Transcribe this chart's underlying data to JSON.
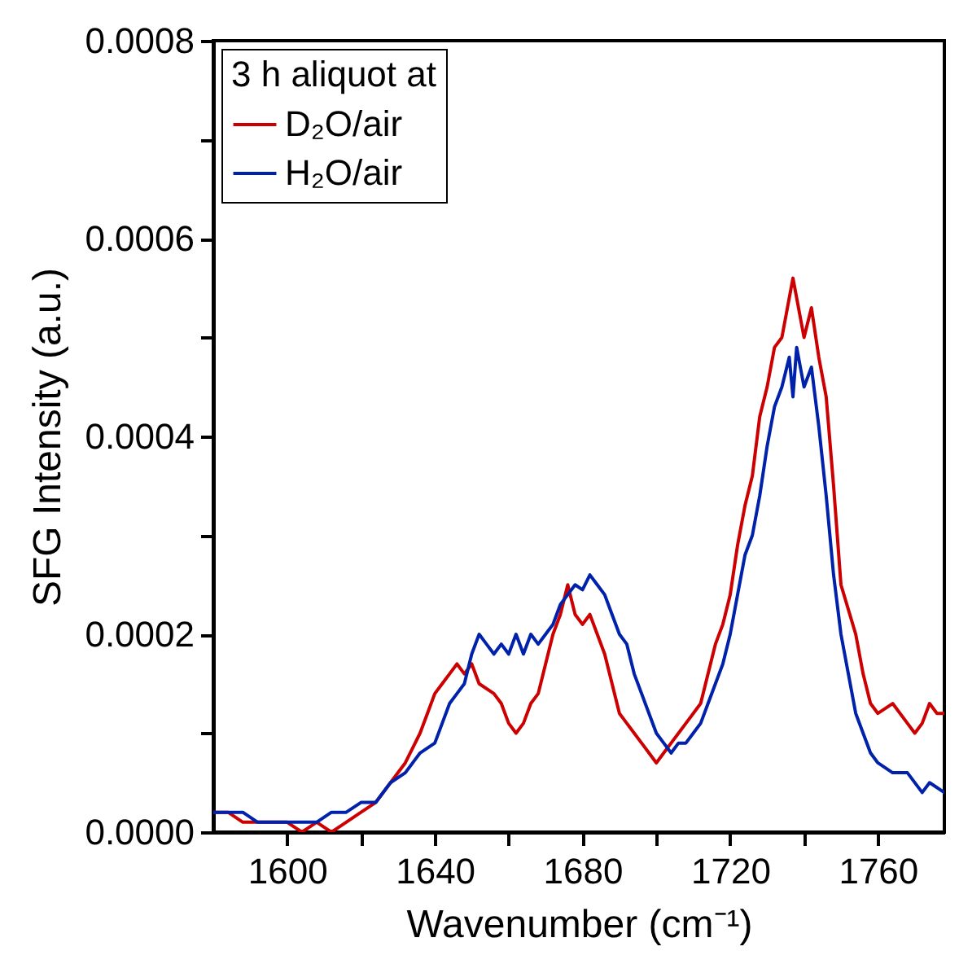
{
  "chart_data": {
    "type": "line",
    "xlabel": "Wavenumber (cm⁻¹)",
    "ylabel": "SFG Intensity (a.u.)",
    "legend_title": "3 h aliquot at",
    "legend": "top left",
    "grid": false,
    "marker": "none",
    "line_style": "solid",
    "xlim": [
      1580,
      1778
    ],
    "ylim": [
      0,
      0.0008
    ],
    "xticks": [
      1600,
      {
        "value": 1620,
        "label": null
      },
      1640,
      {
        "value": 1660,
        "label": null
      },
      1680,
      {
        "value": 1700,
        "label": null
      },
      1720,
      {
        "value": 1740,
        "label": null
      },
      1760
    ],
    "yticks": [
      {
        "value": 0,
        "label": "0.0000"
      },
      {
        "value": 0.0001,
        "label": null
      },
      {
        "value": 0.0002,
        "label": "0.0002"
      },
      {
        "value": 0.0003,
        "label": null
      },
      {
        "value": 0.0004,
        "label": "0.0004"
      },
      {
        "value": 0.0005,
        "label": null
      },
      {
        "value": 0.0006,
        "label": "0.0006"
      },
      {
        "value": 0.0007,
        "label": null
      },
      {
        "value": 0.0008,
        "label": "0.0008"
      }
    ],
    "series": [
      {
        "name": "D₂O/air",
        "color": "#cc0000",
        "x": [
          1580,
          1584,
          1588,
          1592,
          1596,
          1600,
          1604,
          1608,
          1612,
          1616,
          1620,
          1624,
          1628,
          1632,
          1636,
          1638,
          1640,
          1642,
          1644,
          1646,
          1648,
          1650,
          1652,
          1656,
          1658,
          1660,
          1662,
          1664,
          1666,
          1668,
          1670,
          1672,
          1674,
          1676,
          1678,
          1680,
          1682,
          1684,
          1686,
          1690,
          1692,
          1694,
          1696,
          1698,
          1700,
          1702,
          1704,
          1706,
          1708,
          1710,
          1712,
          1714,
          1716,
          1718,
          1720,
          1722,
          1724,
          1726,
          1728,
          1730,
          1732,
          1734,
          1736,
          1737,
          1738,
          1740,
          1742,
          1744,
          1746,
          1748,
          1750,
          1754,
          1756,
          1758,
          1760,
          1764,
          1768,
          1770,
          1772,
          1774,
          1776,
          1778
        ],
        "values": [
          2e-05,
          2e-05,
          1e-05,
          1e-05,
          1e-05,
          1e-05,
          0,
          1e-05,
          0,
          1e-05,
          2e-05,
          3e-05,
          5e-05,
          7e-05,
          0.0001,
          0.00012,
          0.00014,
          0.00015,
          0.00016,
          0.00017,
          0.00016,
          0.00017,
          0.00015,
          0.00014,
          0.00013,
          0.00011,
          0.0001,
          0.00011,
          0.00013,
          0.00014,
          0.00017,
          0.0002,
          0.00022,
          0.00025,
          0.00022,
          0.00021,
          0.00022,
          0.0002,
          0.00018,
          0.00012,
          0.00011,
          0.0001,
          9e-05,
          8e-05,
          7e-05,
          8e-05,
          9e-05,
          0.0001,
          0.00011,
          0.00012,
          0.00013,
          0.00016,
          0.00019,
          0.00021,
          0.00024,
          0.00029,
          0.00033,
          0.00036,
          0.00042,
          0.00045,
          0.00049,
          0.0005,
          0.00054,
          0.00056,
          0.00054,
          0.0005,
          0.00053,
          0.00048,
          0.00044,
          0.00035,
          0.00025,
          0.0002,
          0.00016,
          0.00013,
          0.00012,
          0.00013,
          0.00011,
          0.0001,
          0.00011,
          0.00013,
          0.00012,
          0.00012
        ]
      },
      {
        "name": "H₂O/air",
        "color": "#0022aa",
        "x": [
          1580,
          1584,
          1588,
          1592,
          1596,
          1600,
          1604,
          1608,
          1612,
          1616,
          1620,
          1624,
          1628,
          1632,
          1636,
          1640,
          1642,
          1644,
          1646,
          1648,
          1650,
          1652,
          1654,
          1656,
          1658,
          1660,
          1662,
          1664,
          1666,
          1668,
          1670,
          1672,
          1674,
          1676,
          1678,
          1680,
          1682,
          1684,
          1686,
          1688,
          1690,
          1692,
          1694,
          1696,
          1698,
          1700,
          1702,
          1704,
          1706,
          1708,
          1710,
          1712,
          1714,
          1716,
          1718,
          1720,
          1722,
          1724,
          1726,
          1728,
          1730,
          1732,
          1734,
          1736,
          1737,
          1738,
          1740,
          1742,
          1744,
          1746,
          1748,
          1750,
          1752,
          1754,
          1756,
          1758,
          1760,
          1764,
          1768,
          1772,
          1774,
          1778
        ],
        "values": [
          2e-05,
          2e-05,
          2e-05,
          1e-05,
          1e-05,
          1e-05,
          1e-05,
          1e-05,
          2e-05,
          2e-05,
          3e-05,
          3e-05,
          5e-05,
          6e-05,
          8e-05,
          9e-05,
          0.00011,
          0.00013,
          0.00014,
          0.00015,
          0.00018,
          0.0002,
          0.00019,
          0.00018,
          0.00019,
          0.00018,
          0.0002,
          0.00018,
          0.0002,
          0.00019,
          0.0002,
          0.00021,
          0.00023,
          0.00024,
          0.00025,
          0.000245,
          0.00026,
          0.00025,
          0.00024,
          0.00022,
          0.0002,
          0.00019,
          0.00016,
          0.00014,
          0.00012,
          0.0001,
          9e-05,
          8e-05,
          9e-05,
          9e-05,
          0.0001,
          0.00011,
          0.00013,
          0.00015,
          0.00017,
          0.0002,
          0.00024,
          0.00028,
          0.0003,
          0.00034,
          0.00039,
          0.00043,
          0.00045,
          0.00048,
          0.00044,
          0.00049,
          0.00045,
          0.00047,
          0.00041,
          0.00034,
          0.00026,
          0.0002,
          0.00016,
          0.00012,
          0.0001,
          8e-05,
          7e-05,
          6e-05,
          6e-05,
          4e-05,
          5e-05,
          4e-05
        ]
      }
    ]
  }
}
